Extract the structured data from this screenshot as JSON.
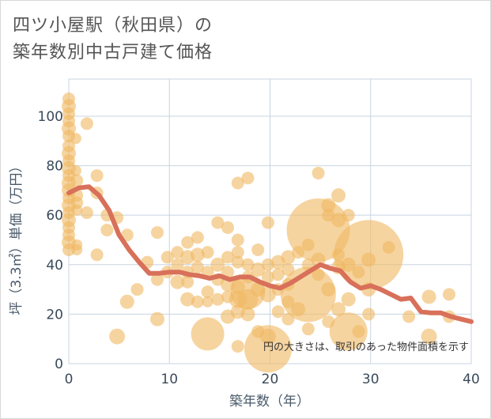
{
  "title_line1": "四ツ小屋駅（秋田県）の",
  "title_line2": "築年数別中古戸建て価格",
  "chart_data": {
    "type": "scatter",
    "xlabel": "築年数（年）",
    "ylabel": "坪（3.3㎡）単価（万円）",
    "xlim": [
      0,
      40
    ],
    "ylim": [
      0,
      115
    ],
    "x_ticks": [
      0,
      10,
      20,
      30,
      40
    ],
    "y_ticks": [
      0,
      20,
      40,
      60,
      80,
      100
    ],
    "grid": true,
    "note": "円の大きさは、取引のあった物件面積を示す",
    "colors": {
      "bubble": "#f0b860",
      "trend": "#d8705a",
      "grid": "#c8d4e0"
    },
    "bubbles": [
      [
        0,
        107,
        8
      ],
      [
        0,
        104,
        9
      ],
      [
        0,
        101,
        8
      ],
      [
        0,
        98,
        8
      ],
      [
        0,
        95,
        9
      ],
      [
        0,
        92,
        8
      ],
      [
        0,
        88,
        8
      ],
      [
        0,
        85,
        9
      ],
      [
        0,
        82,
        8
      ],
      [
        0,
        79,
        9
      ],
      [
        0,
        76,
        8
      ],
      [
        0,
        73,
        9
      ],
      [
        0,
        70,
        9
      ],
      [
        0,
        67,
        8
      ],
      [
        0,
        64,
        9
      ],
      [
        0,
        61,
        8
      ],
      [
        0,
        58,
        9
      ],
      [
        0,
        55,
        8
      ],
      [
        0,
        52,
        8
      ],
      [
        0,
        49,
        9
      ],
      [
        0,
        46,
        8
      ],
      [
        0.7,
        91,
        7
      ],
      [
        0.7,
        78,
        7
      ],
      [
        0.8,
        74,
        8
      ],
      [
        0.8,
        68,
        8
      ],
      [
        0.8,
        65,
        8
      ],
      [
        0.8,
        62,
        7
      ],
      [
        0.8,
        48,
        7
      ],
      [
        0.8,
        46,
        7
      ],
      [
        1.8,
        97,
        8
      ],
      [
        1.8,
        61,
        8
      ],
      [
        2.8,
        76,
        8
      ],
      [
        2.8,
        69,
        8
      ],
      [
        2.8,
        44,
        8
      ],
      [
        3.8,
        60,
        8
      ],
      [
        3.8,
        54,
        8
      ],
      [
        4.8,
        59,
        8
      ],
      [
        4.8,
        11,
        10
      ],
      [
        5.8,
        52,
        8
      ],
      [
        5.8,
        25,
        9
      ],
      [
        6.8,
        30,
        8
      ],
      [
        7.8,
        41,
        8
      ],
      [
        8.8,
        53,
        8
      ],
      [
        8.8,
        34,
        8
      ],
      [
        8.8,
        18,
        9
      ],
      [
        9.8,
        43,
        8
      ],
      [
        9.8,
        37,
        8
      ],
      [
        10.8,
        45,
        8
      ],
      [
        10.8,
        40,
        8
      ],
      [
        10.8,
        33,
        9
      ],
      [
        11.8,
        49,
        8
      ],
      [
        11.8,
        43,
        9
      ],
      [
        11.8,
        37,
        8
      ],
      [
        11.8,
        33,
        8
      ],
      [
        11.8,
        26,
        9
      ],
      [
        12.8,
        51,
        8
      ],
      [
        12.8,
        44,
        9
      ],
      [
        12.8,
        39,
        8
      ],
      [
        12.8,
        25,
        8
      ],
      [
        13.8,
        45,
        8
      ],
      [
        13.8,
        37,
        8
      ],
      [
        13.8,
        29,
        8
      ],
      [
        13.8,
        25,
        7
      ],
      [
        13.8,
        12,
        21
      ],
      [
        14.8,
        57,
        8
      ],
      [
        14.8,
        40,
        9
      ],
      [
        14.8,
        34,
        8
      ],
      [
        14.8,
        26,
        8
      ],
      [
        15.8,
        55,
        8
      ],
      [
        15.8,
        43,
        8
      ],
      [
        15.8,
        37,
        8
      ],
      [
        15.8,
        32,
        9
      ],
      [
        15.8,
        27,
        8
      ],
      [
        15.8,
        19,
        9
      ],
      [
        16.8,
        73,
        8
      ],
      [
        16.8,
        50,
        8
      ],
      [
        16.8,
        45,
        8
      ],
      [
        16.8,
        41,
        8
      ],
      [
        16.8,
        31,
        9
      ],
      [
        16.8,
        26,
        11
      ],
      [
        16.8,
        21,
        9
      ],
      [
        16.8,
        7,
        8
      ],
      [
        17.8,
        75,
        8
      ],
      [
        17.8,
        40,
        8
      ],
      [
        17.8,
        35,
        8
      ],
      [
        17.8,
        29,
        22
      ],
      [
        17.8,
        26,
        13
      ],
      [
        17.8,
        20,
        9
      ],
      [
        18.8,
        46,
        8
      ],
      [
        18.8,
        38,
        9
      ],
      [
        18.8,
        30,
        9
      ],
      [
        18.8,
        13,
        8
      ],
      [
        19.8,
        57,
        8
      ],
      [
        19.8,
        40,
        8
      ],
      [
        19.8,
        35,
        8
      ],
      [
        19.8,
        28,
        10
      ],
      [
        19.8,
        11,
        10
      ],
      [
        19.8,
        6,
        30
      ],
      [
        20.8,
        41,
        9
      ],
      [
        20.8,
        36,
        8
      ],
      [
        20.8,
        30,
        8
      ],
      [
        20.8,
        21,
        8
      ],
      [
        21.8,
        43,
        9
      ],
      [
        21.8,
        38,
        8
      ],
      [
        21.8,
        32,
        8
      ],
      [
        21.8,
        25,
        8
      ],
      [
        21.8,
        18,
        8
      ],
      [
        22.8,
        45,
        8
      ],
      [
        22.8,
        22,
        9
      ],
      [
        23.8,
        48,
        8
      ],
      [
        23.8,
        40,
        8
      ],
      [
        23.8,
        28,
        35
      ],
      [
        23.8,
        14,
        8
      ],
      [
        24.8,
        77,
        8
      ],
      [
        24.8,
        54,
        40
      ],
      [
        24.8,
        42,
        9
      ],
      [
        24.8,
        36,
        8
      ],
      [
        25.8,
        64,
        9
      ],
      [
        25.8,
        60,
        8
      ],
      [
        25.8,
        30,
        9
      ],
      [
        25.8,
        17,
        8
      ],
      [
        26.8,
        68,
        9
      ],
      [
        26.8,
        58,
        9
      ],
      [
        26.8,
        44,
        8
      ],
      [
        26.8,
        39,
        9
      ],
      [
        26.8,
        22,
        9
      ],
      [
        27.8,
        60,
        8
      ],
      [
        27.8,
        40,
        9
      ],
      [
        27.8,
        26,
        9
      ],
      [
        27.8,
        13,
        24
      ],
      [
        28.8,
        37,
        8
      ],
      [
        28.8,
        13,
        8
      ],
      [
        29.8,
        44,
        44
      ],
      [
        29.8,
        42,
        9
      ],
      [
        29.8,
        30,
        9
      ],
      [
        29.8,
        20,
        8
      ],
      [
        31.8,
        47,
        8
      ],
      [
        33.8,
        19,
        8
      ],
      [
        35.8,
        27,
        9
      ],
      [
        35.8,
        11,
        10
      ],
      [
        37.8,
        28,
        8
      ],
      [
        37.8,
        19,
        8
      ]
    ],
    "trend": [
      [
        0,
        69
      ],
      [
        1,
        71
      ],
      [
        2,
        71.5
      ],
      [
        3,
        68
      ],
      [
        4,
        62
      ],
      [
        5,
        52
      ],
      [
        6,
        46
      ],
      [
        7,
        41
      ],
      [
        8,
        36.5
      ],
      [
        9,
        36.5
      ],
      [
        10,
        37
      ],
      [
        11,
        37
      ],
      [
        12,
        36
      ],
      [
        13,
        35.5
      ],
      [
        14,
        34.5
      ],
      [
        15,
        35.5
      ],
      [
        16,
        34
      ],
      [
        17,
        35
      ],
      [
        18,
        35
      ],
      [
        19,
        33
      ],
      [
        20,
        31.5
      ],
      [
        21,
        30.5
      ],
      [
        22,
        32.5
      ],
      [
        23,
        35
      ],
      [
        24,
        37.5
      ],
      [
        25,
        40
      ],
      [
        26,
        38.5
      ],
      [
        27,
        37.5
      ],
      [
        28,
        33
      ],
      [
        29,
        30.5
      ],
      [
        30,
        31.5
      ],
      [
        31,
        30
      ],
      [
        32,
        28
      ],
      [
        33,
        26
      ],
      [
        34,
        26.5
      ],
      [
        35,
        21
      ],
      [
        36,
        20.5
      ],
      [
        37,
        20.5
      ],
      [
        38,
        19
      ],
      [
        39,
        18
      ],
      [
        40,
        17
      ]
    ]
  }
}
